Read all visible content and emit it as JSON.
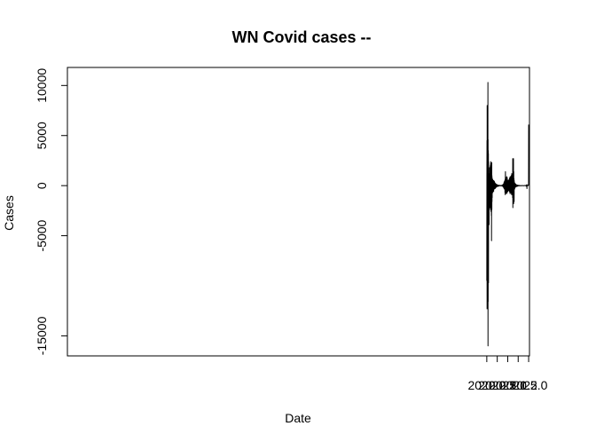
{
  "chart_data": {
    "type": "line",
    "title": "WN Covid cases --",
    "xlabel": "Date",
    "ylabel": "Cases",
    "xlim": [
      1999.96,
      2022.04
    ],
    "ylim": [
      -17000,
      11800
    ],
    "x_ticks": [
      2020.0,
      2020.5,
      2021.0,
      2021.5,
      2022.0
    ],
    "x_tick_labels": [
      "2020.0",
      "2020.5",
      "2021.0",
      "2021.5",
      "2022.0"
    ],
    "y_ticks": [
      -15000,
      -5000,
      0,
      5000,
      10000
    ],
    "y_tick_labels": [
      "-15000",
      "-5000",
      "0",
      "5000",
      "10000"
    ],
    "grid": false,
    "series": [
      {
        "color": "#000000",
        "points": [
          [
            2020.0,
            -9500
          ],
          [
            2020.005,
            1000
          ],
          [
            2020.01,
            4500
          ],
          [
            2020.014,
            -12300
          ],
          [
            2020.018,
            8000
          ],
          [
            2020.022,
            -1500
          ],
          [
            2020.026,
            4800
          ],
          [
            2020.03,
            -3000
          ],
          [
            2020.034,
            4200
          ],
          [
            2020.038,
            -11000
          ],
          [
            2020.042,
            2000
          ],
          [
            2020.046,
            4800
          ],
          [
            2020.05,
            -3500
          ],
          [
            2020.054,
            10300
          ],
          [
            2020.058,
            -16000
          ],
          [
            2020.062,
            4600
          ],
          [
            2020.066,
            -11600
          ],
          [
            2020.07,
            3500
          ],
          [
            2020.074,
            -4500
          ],
          [
            2020.078,
            3200
          ],
          [
            2020.082,
            -9700
          ],
          [
            2020.086,
            2400
          ],
          [
            2020.09,
            -1800
          ],
          [
            2020.094,
            800
          ],
          [
            2020.098,
            -3700
          ],
          [
            2020.102,
            1200
          ],
          [
            2020.106,
            -500
          ],
          [
            2020.11,
            -3900
          ],
          [
            2020.114,
            900
          ],
          [
            2020.118,
            -1000
          ],
          [
            2020.122,
            300
          ],
          [
            2020.126,
            1200
          ],
          [
            2020.13,
            -800
          ],
          [
            2020.134,
            1800
          ],
          [
            2020.138,
            -1500
          ],
          [
            2020.142,
            600
          ],
          [
            2020.146,
            -2200
          ],
          [
            2020.15,
            1500
          ],
          [
            2020.154,
            -600
          ],
          [
            2020.158,
            1000
          ],
          [
            2020.162,
            -1800
          ],
          [
            2020.166,
            2000
          ],
          [
            2020.17,
            -1200
          ],
          [
            2020.174,
            1500
          ],
          [
            2020.178,
            -2400
          ],
          [
            2020.182,
            2200
          ],
          [
            2020.186,
            -900
          ],
          [
            2020.19,
            2400
          ],
          [
            2020.194,
            -1600
          ],
          [
            2020.198,
            2200
          ],
          [
            2020.202,
            -2600
          ],
          [
            2020.206,
            1800
          ],
          [
            2020.21,
            -1500
          ],
          [
            2020.214,
            2100
          ],
          [
            2020.218,
            -3000
          ],
          [
            2020.222,
            1400
          ],
          [
            2020.226,
            -5500
          ],
          [
            2020.23,
            1800
          ],
          [
            2020.234,
            -1200
          ],
          [
            2020.238,
            2300
          ],
          [
            2020.242,
            -2400
          ],
          [
            2020.246,
            1000
          ],
          [
            2020.25,
            -1600
          ],
          [
            2020.254,
            800
          ],
          [
            2020.258,
            -1200
          ],
          [
            2020.262,
            700
          ],
          [
            2020.266,
            -600
          ],
          [
            2020.272,
            600
          ],
          [
            2020.28,
            -700
          ],
          [
            2020.288,
            600
          ],
          [
            2020.296,
            -500
          ],
          [
            2020.304,
            500
          ],
          [
            2020.312,
            -500
          ],
          [
            2020.32,
            400
          ],
          [
            2020.328,
            -600
          ],
          [
            2020.336,
            500
          ],
          [
            2020.344,
            -400
          ],
          [
            2020.352,
            400
          ],
          [
            2020.36,
            -300
          ],
          [
            2020.368,
            400
          ],
          [
            2020.376,
            -300
          ],
          [
            2020.384,
            300
          ],
          [
            2020.392,
            -300
          ],
          [
            2020.4,
            250
          ],
          [
            2020.41,
            -250
          ],
          [
            2020.42,
            200
          ],
          [
            2020.43,
            -200
          ],
          [
            2020.44,
            150
          ],
          [
            2020.45,
            -150
          ],
          [
            2020.46,
            120
          ],
          [
            2020.47,
            -120
          ],
          [
            2020.48,
            100
          ],
          [
            2020.49,
            -100
          ],
          [
            2020.5,
            80
          ],
          [
            2020.52,
            -80
          ],
          [
            2020.54,
            60
          ],
          [
            2020.56,
            -60
          ],
          [
            2020.58,
            40
          ],
          [
            2020.6,
            -40
          ],
          [
            2020.63,
            40
          ],
          [
            2020.66,
            -30
          ],
          [
            2020.69,
            30
          ],
          [
            2020.72,
            -40
          ],
          [
            2020.74,
            60
          ],
          [
            2020.76,
            -80
          ],
          [
            2020.775,
            120
          ],
          [
            2020.79,
            -150
          ],
          [
            2020.805,
            200
          ],
          [
            2020.815,
            -250
          ],
          [
            2020.825,
            350
          ],
          [
            2020.835,
            -300
          ],
          [
            2020.845,
            450
          ],
          [
            2020.855,
            -400
          ],
          [
            2020.862,
            500
          ],
          [
            2020.868,
            -700
          ],
          [
            2020.874,
            600
          ],
          [
            2020.88,
            -900
          ],
          [
            2020.886,
            700
          ],
          [
            2020.892,
            1400
          ],
          [
            2020.898,
            -800
          ],
          [
            2020.904,
            500
          ],
          [
            2020.91,
            -600
          ],
          [
            2020.916,
            800
          ],
          [
            2020.922,
            -700
          ],
          [
            2020.928,
            400
          ],
          [
            2020.934,
            -500
          ],
          [
            2020.94,
            700
          ],
          [
            2020.946,
            -800
          ],
          [
            2020.952,
            900
          ],
          [
            2020.958,
            -600
          ],
          [
            2020.964,
            500
          ],
          [
            2020.97,
            -700
          ],
          [
            2020.976,
            800
          ],
          [
            2020.982,
            -500
          ],
          [
            2020.988,
            600
          ],
          [
            2020.994,
            -400
          ],
          [
            2021.0,
            500
          ],
          [
            2021.006,
            -600
          ],
          [
            2021.012,
            400
          ],
          [
            2021.018,
            -500
          ],
          [
            2021.024,
            300
          ],
          [
            2021.03,
            -400
          ],
          [
            2021.036,
            500
          ],
          [
            2021.042,
            -300
          ],
          [
            2021.048,
            400
          ],
          [
            2021.054,
            -500
          ],
          [
            2021.06,
            600
          ],
          [
            2021.066,
            -400
          ],
          [
            2021.072,
            500
          ],
          [
            2021.078,
            -600
          ],
          [
            2021.084,
            700
          ],
          [
            2021.09,
            -500
          ],
          [
            2021.096,
            800
          ],
          [
            2021.102,
            -700
          ],
          [
            2021.108,
            600
          ],
          [
            2021.114,
            -800
          ],
          [
            2021.12,
            900
          ],
          [
            2021.126,
            -600
          ],
          [
            2021.132,
            700
          ],
          [
            2021.138,
            -500
          ],
          [
            2021.144,
            800
          ],
          [
            2021.15,
            -700
          ],
          [
            2021.156,
            900
          ],
          [
            2021.162,
            -600
          ],
          [
            2021.168,
            1000
          ],
          [
            2021.174,
            -800
          ],
          [
            2021.18,
            700
          ],
          [
            2021.186,
            -900
          ],
          [
            2021.192,
            1200
          ],
          [
            2021.198,
            -800
          ],
          [
            2021.204,
            900
          ],
          [
            2021.21,
            -700
          ],
          [
            2021.216,
            1100
          ],
          [
            2021.222,
            -900
          ],
          [
            2021.228,
            800
          ],
          [
            2021.234,
            -1200
          ],
          [
            2021.24,
            2700
          ],
          [
            2021.246,
            -2200
          ],
          [
            2021.252,
            1500
          ],
          [
            2021.258,
            -1300
          ],
          [
            2021.264,
            1200
          ],
          [
            2021.27,
            -1000
          ],
          [
            2021.276,
            2700
          ],
          [
            2021.282,
            -1800
          ],
          [
            2021.288,
            1400
          ],
          [
            2021.294,
            -900
          ],
          [
            2021.3,
            700
          ],
          [
            2021.306,
            -1600
          ],
          [
            2021.312,
            500
          ],
          [
            2021.318,
            -400
          ],
          [
            2021.326,
            300
          ],
          [
            2021.334,
            -300
          ],
          [
            2021.342,
            250
          ],
          [
            2021.35,
            -200
          ],
          [
            2021.36,
            200
          ],
          [
            2021.37,
            -150
          ],
          [
            2021.38,
            150
          ],
          [
            2021.39,
            -120
          ],
          [
            2021.4,
            100
          ],
          [
            2021.41,
            -100
          ],
          [
            2021.42,
            80
          ],
          [
            2021.44,
            -80
          ],
          [
            2021.46,
            60
          ],
          [
            2021.48,
            -60
          ],
          [
            2021.5,
            40
          ],
          [
            2021.53,
            -40
          ],
          [
            2021.56,
            30
          ],
          [
            2021.6,
            -30
          ],
          [
            2021.64,
            20
          ],
          [
            2021.68,
            -20
          ],
          [
            2021.72,
            20
          ],
          [
            2021.76,
            -20
          ],
          [
            2021.8,
            20
          ],
          [
            2021.84,
            -20
          ],
          [
            2021.87,
            30
          ],
          [
            2021.89,
            -30
          ],
          [
            2021.9,
            60
          ],
          [
            2021.908,
            -150
          ],
          [
            2021.914,
            100
          ],
          [
            2021.918,
            -300
          ],
          [
            2021.924,
            50
          ],
          [
            2021.94,
            0
          ],
          [
            2021.96,
            50
          ],
          [
            2021.98,
            0
          ],
          [
            2021.995,
            50
          ],
          [
            2022.0,
            6100
          ]
        ]
      }
    ]
  }
}
